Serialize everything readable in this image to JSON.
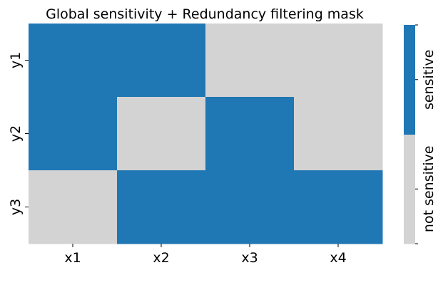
{
  "chart_data": {
    "type": "heatmap",
    "title": "Global sensitivity + Redundancy filtering mask",
    "x_categories": [
      "x1",
      "x2",
      "x3",
      "x4"
    ],
    "y_categories": [
      "y1",
      "y2",
      "y3"
    ],
    "values": [
      [
        1,
        1,
        0,
        0
      ],
      [
        1,
        0,
        1,
        0
      ],
      [
        0,
        1,
        1,
        1
      ]
    ],
    "colorbar": {
      "labels": [
        "not sensitive",
        "sensitive"
      ],
      "colors": [
        "#d3d3d3",
        "#1f77b4"
      ]
    }
  }
}
